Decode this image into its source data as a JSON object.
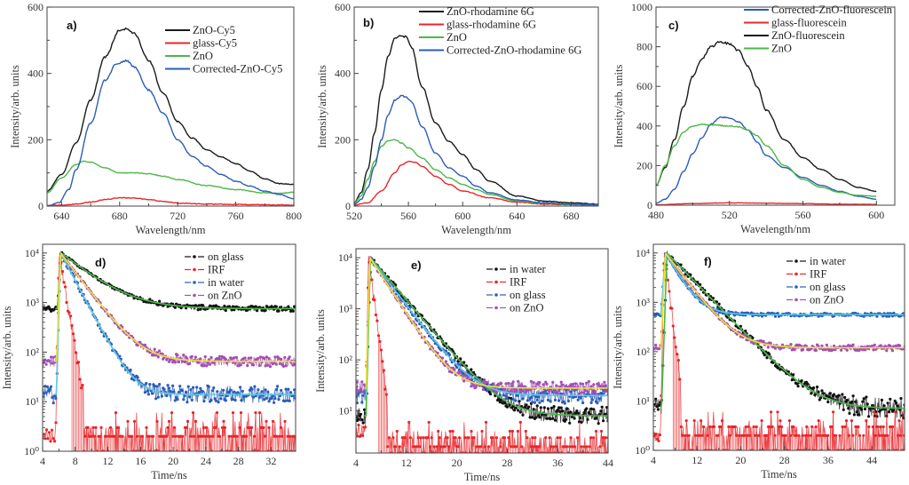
{
  "chart_data": [
    {
      "id": "a",
      "type": "line",
      "panel_label": "a)",
      "xlabel": "Wavelength/nm",
      "ylabel": "Intensity/arb. units",
      "xlim": [
        630,
        800
      ],
      "ylim": [
        0,
        600
      ],
      "yscale": "linear",
      "xticks": [
        640,
        680,
        720,
        760,
        800
      ],
      "xtick_labels": [
        "640",
        "680",
        "720",
        "760",
        "800"
      ],
      "yticks": [
        0,
        200,
        400,
        600
      ],
      "ytick_labels": [
        "0",
        "200",
        "400",
        "600"
      ],
      "legend_position": "top-right",
      "series": [
        {
          "name": "ZnO-Cy5",
          "color": "#1a1a1a",
          "x": [
            630,
            640,
            650,
            660,
            670,
            680,
            685,
            690,
            700,
            710,
            720,
            730,
            740,
            750,
            760,
            770,
            780,
            790,
            800
          ],
          "y": [
            45,
            95,
            190,
            320,
            450,
            530,
            535,
            520,
            440,
            340,
            255,
            205,
            170,
            148,
            128,
            105,
            82,
            68,
            65
          ]
        },
        {
          "name": "glass-Cy5",
          "color": "#e8262a",
          "x": [
            630,
            640,
            650,
            660,
            670,
            680,
            690,
            700,
            710,
            720,
            740,
            760,
            780,
            800
          ],
          "y": [
            2,
            3,
            6,
            12,
            20,
            25,
            24,
            20,
            14,
            9,
            6,
            5,
            4,
            3
          ]
        },
        {
          "name": "ZnO",
          "color": "#4cb848",
          "x": [
            630,
            640,
            650,
            655,
            660,
            670,
            680,
            690,
            700,
            710,
            720,
            740,
            760,
            780,
            790,
            800
          ],
          "y": [
            40,
            85,
            125,
            135,
            133,
            115,
            100,
            100,
            98,
            90,
            80,
            62,
            50,
            40,
            38,
            42
          ]
        },
        {
          "name": "Corrected-ZnO-Cy5",
          "color": "#2a5db8",
          "x": [
            630,
            638,
            645,
            650,
            660,
            670,
            678,
            685,
            690,
            700,
            710,
            720,
            730,
            740,
            750,
            760,
            770,
            780,
            790,
            800
          ],
          "y": [
            0,
            10,
            50,
            110,
            250,
            380,
            430,
            438,
            420,
            350,
            280,
            200,
            150,
            120,
            95,
            75,
            60,
            45,
            35,
            22
          ]
        }
      ]
    },
    {
      "id": "b",
      "type": "line",
      "panel_label": "b)",
      "xlabel": "Wavelength/nm",
      "ylabel": "Intensity/arb. units",
      "xlim": [
        520,
        700
      ],
      "ylim": [
        0,
        600
      ],
      "yscale": "linear",
      "xticks": [
        520,
        560,
        600,
        640,
        680
      ],
      "xtick_labels": [
        "520",
        "560",
        "600",
        "640",
        "680"
      ],
      "yticks": [
        0,
        200,
        400,
        600
      ],
      "ytick_labels": [
        "0",
        "200",
        "400",
        "600"
      ],
      "legend_position": "top-right",
      "series": [
        {
          "name": "ZnO-rhodamine 6G",
          "color": "#1a1a1a",
          "x": [
            520,
            525,
            530,
            535,
            540,
            545,
            550,
            555,
            558,
            562,
            570,
            580,
            590,
            600,
            610,
            620,
            640,
            660,
            680,
            700
          ],
          "y": [
            10,
            40,
            110,
            220,
            350,
            450,
            505,
            515,
            510,
            480,
            360,
            250,
            195,
            155,
            110,
            75,
            30,
            15,
            10,
            6
          ]
        },
        {
          "name": "glass-rhodamine 6G",
          "color": "#e8262a",
          "x": [
            520,
            530,
            540,
            550,
            555,
            560,
            565,
            570,
            580,
            590,
            600,
            620,
            640,
            660,
            680,
            700
          ],
          "y": [
            3,
            10,
            45,
            100,
            125,
            135,
            132,
            120,
            90,
            65,
            45,
            25,
            12,
            6,
            4,
            3
          ]
        },
        {
          "name": "ZnO",
          "color": "#4cb848",
          "x": [
            520,
            525,
            530,
            535,
            540,
            545,
            550,
            555,
            560,
            570,
            580,
            590,
            600,
            610,
            620,
            640,
            660,
            680,
            700
          ],
          "y": [
            8,
            30,
            80,
            135,
            180,
            198,
            200,
            190,
            175,
            145,
            110,
            85,
            65,
            50,
            35,
            15,
            8,
            5,
            4
          ]
        },
        {
          "name": "Corrected-ZnO-rhodamine 6G",
          "color": "#2a5db8",
          "x": [
            520,
            525,
            530,
            535,
            540,
            545,
            550,
            555,
            558,
            562,
            570,
            580,
            590,
            600,
            610,
            620,
            640,
            660,
            680,
            700
          ],
          "y": [
            5,
            20,
            55,
            120,
            200,
            275,
            320,
            332,
            330,
            315,
            240,
            160,
            115,
            90,
            60,
            40,
            18,
            10,
            6,
            4
          ]
        }
      ]
    },
    {
      "id": "c",
      "type": "line",
      "panel_label": "c)",
      "xlabel": "Wavelength/nm",
      "ylabel": "Intensity/arb. units",
      "xlim": [
        480,
        610
      ],
      "ylim": [
        0,
        1000
      ],
      "yscale": "linear",
      "xticks": [
        480,
        520,
        560,
        600
      ],
      "xtick_labels": [
        "480",
        "520",
        "560",
        "600"
      ],
      "yticks": [
        0,
        200,
        400,
        600,
        800,
        1000
      ],
      "ytick_labels": [
        "0",
        "200",
        "400",
        "600",
        "800",
        "1000"
      ],
      "legend_position": "top-right",
      "series": [
        {
          "name": "Corrected-ZnO-fluorescein",
          "color": "#2a5db8",
          "x": [
            480,
            485,
            490,
            495,
            500,
            505,
            510,
            515,
            520,
            525,
            530,
            535,
            540,
            550,
            560,
            570,
            580,
            590,
            600
          ],
          "y": [
            10,
            30,
            80,
            170,
            260,
            340,
            410,
            445,
            440,
            420,
            380,
            320,
            250,
            190,
            140,
            100,
            70,
            45,
            30
          ]
        },
        {
          "name": "glass-fluorescein",
          "color": "#e8262a",
          "x": [
            480,
            500,
            520,
            540,
            560,
            580,
            600
          ],
          "y": [
            2,
            8,
            12,
            10,
            8,
            5,
            4
          ]
        },
        {
          "name": "ZnO-fluorescein",
          "color": "#1a1a1a",
          "x": [
            480,
            485,
            490,
            495,
            500,
            505,
            510,
            515,
            520,
            525,
            530,
            535,
            540,
            550,
            560,
            570,
            580,
            590,
            600
          ],
          "y": [
            100,
            190,
            330,
            500,
            650,
            740,
            800,
            825,
            815,
            780,
            700,
            600,
            480,
            330,
            240,
            180,
            130,
            90,
            70
          ]
        },
        {
          "name": "ZnO",
          "color": "#4cb848",
          "x": [
            480,
            485,
            490,
            495,
            500,
            505,
            510,
            520,
            525,
            530,
            535,
            540,
            550,
            560,
            570,
            580,
            590,
            600
          ],
          "y": [
            100,
            200,
            300,
            370,
            400,
            408,
            405,
            400,
            395,
            380,
            350,
            300,
            200,
            130,
            90,
            65,
            50,
            45
          ]
        }
      ]
    },
    {
      "id": "d",
      "type": "scatter",
      "panel_label": "d)",
      "xlabel": "Time/ns",
      "ylabel": "Intensity/arb. units",
      "xlim": [
        4,
        35
      ],
      "ylim": [
        1,
        15000
      ],
      "yscale": "log",
      "xticks": [
        4,
        8,
        12,
        16,
        20,
        24,
        28,
        32
      ],
      "xtick_labels": [
        "4",
        "8",
        "12",
        "16",
        "20",
        "24",
        "28",
        "32"
      ],
      "yticks": [
        1,
        10,
        100,
        1000,
        10000
      ],
      "ytick_labels": [
        "10⁰",
        "10¹",
        "10²",
        "10³",
        "10⁴"
      ],
      "legend_position": "top-right",
      "series": [
        {
          "name": "on glass",
          "color": "#111111",
          "fit_color": "#4cb848",
          "marker": "square",
          "baseline": 750,
          "peak": 10000,
          "rise": 5.8,
          "peak_t": 6.3,
          "tau": 3.2,
          "noise": 0.06
        },
        {
          "name": "IRF",
          "color": "#e8262a",
          "marker": "circle",
          "baseline": 2,
          "peak": 10000,
          "rise": 5.6,
          "peak_t": 6.0,
          "tau": 0.45,
          "noise": 0.5
        },
        {
          "name": "in water",
          "color": "#2a5db8",
          "fit_color": "#5ec8e0",
          "marker": "triangle-down",
          "baseline": 14,
          "peak": 10000,
          "rise": 5.7,
          "peak_t": 6.2,
          "tau": 1.4,
          "noise": 0.2
        },
        {
          "name": "on ZnO",
          "color": "#a24fb8",
          "fit_color": "#f2e030",
          "marker": "triangle-left",
          "baseline": 65,
          "peak": 10000,
          "rise": 5.7,
          "peak_t": 6.2,
          "tau": 2.0,
          "noise": 0.12
        }
      ]
    },
    {
      "id": "e",
      "type": "scatter",
      "panel_label": "e)",
      "xlabel": "Time/ns",
      "ylabel": "Intensity/arb. units",
      "xlim": [
        4,
        44
      ],
      "ylim": [
        1.5,
        15000
      ],
      "yscale": "log",
      "xticks": [
        4,
        12,
        20,
        28,
        36,
        44
      ],
      "xtick_labels": [
        "4",
        "12",
        "20",
        "28",
        "36",
        "44"
      ],
      "yticks": [
        10,
        100,
        1000,
        10000
      ],
      "ytick_labels": [
        "10¹",
        "10²",
        "10³",
        "10⁴"
      ],
      "legend_position": "top-right",
      "series": [
        {
          "name": "in water",
          "color": "#111111",
          "fit_color": "#4cb848",
          "marker": "square",
          "baseline": 8,
          "peak": 10000,
          "rise": 5.6,
          "peak_t": 6.3,
          "tau": 3.0,
          "noise": 0.2
        },
        {
          "name": "IRF",
          "color": "#e8262a",
          "marker": "circle",
          "baseline": 4,
          "peak": 10000,
          "rise": 5.5,
          "peak_t": 6.0,
          "tau": 0.45,
          "noise": 0.35
        },
        {
          "name": "on glass",
          "color": "#2a5db8",
          "fit_color": "#5ec8e0",
          "marker": "triangle-down",
          "baseline": 20,
          "peak": 10000,
          "rise": 5.6,
          "peak_t": 6.2,
          "tau": 2.7,
          "noise": 0.18
        },
        {
          "name": "on ZnO",
          "color": "#a24fb8",
          "fit_color": "#f2e030",
          "marker": "triangle-left",
          "baseline": 28,
          "peak": 10000,
          "rise": 5.6,
          "peak_t": 6.2,
          "tau": 2.3,
          "noise": 0.15
        }
      ]
    },
    {
      "id": "f",
      "type": "scatter",
      "panel_label": "f)",
      "xlabel": "Time/ns",
      "ylabel": "Intensity/arb. units",
      "xlim": [
        4,
        50
      ],
      "ylim": [
        1,
        15000
      ],
      "yscale": "log",
      "xticks": [
        4,
        12,
        20,
        28,
        36,
        44
      ],
      "xtick_labels": [
        "4",
        "12",
        "20",
        "28",
        "36",
        "44"
      ],
      "yticks": [
        1,
        10,
        100,
        1000,
        10000
      ],
      "ytick_labels": [
        "10⁰",
        "10¹",
        "10²",
        "10³",
        "10⁴"
      ],
      "legend_position": "top-right",
      "series": [
        {
          "name": "in water",
          "color": "#111111",
          "fit_color": "#4cb848",
          "marker": "square",
          "baseline": 7,
          "peak": 10000,
          "rise": 5.5,
          "peak_t": 6.5,
          "tau": 3.8,
          "noise": 0.25
        },
        {
          "name": "IRF",
          "color": "#e8262a",
          "marker": "circle",
          "baseline": 2,
          "peak": 10000,
          "rise": 5.3,
          "peak_t": 6.0,
          "tau": 0.5,
          "noise": 0.45
        },
        {
          "name": "on glass",
          "color": "#2a5db8",
          "fit_color": "#5ec8e0",
          "marker": "triangle-down",
          "baseline": 560,
          "peak": 10000,
          "rise": 5.4,
          "peak_t": 6.2,
          "tau": 2.2,
          "noise": 0.04
        },
        {
          "name": "on ZnO",
          "color": "#a24fb8",
          "fit_color": "#f2e030",
          "marker": "triangle-left",
          "baseline": 120,
          "peak": 10000,
          "rise": 5.4,
          "peak_t": 6.2,
          "tau": 3.0,
          "noise": 0.07
        }
      ]
    }
  ]
}
